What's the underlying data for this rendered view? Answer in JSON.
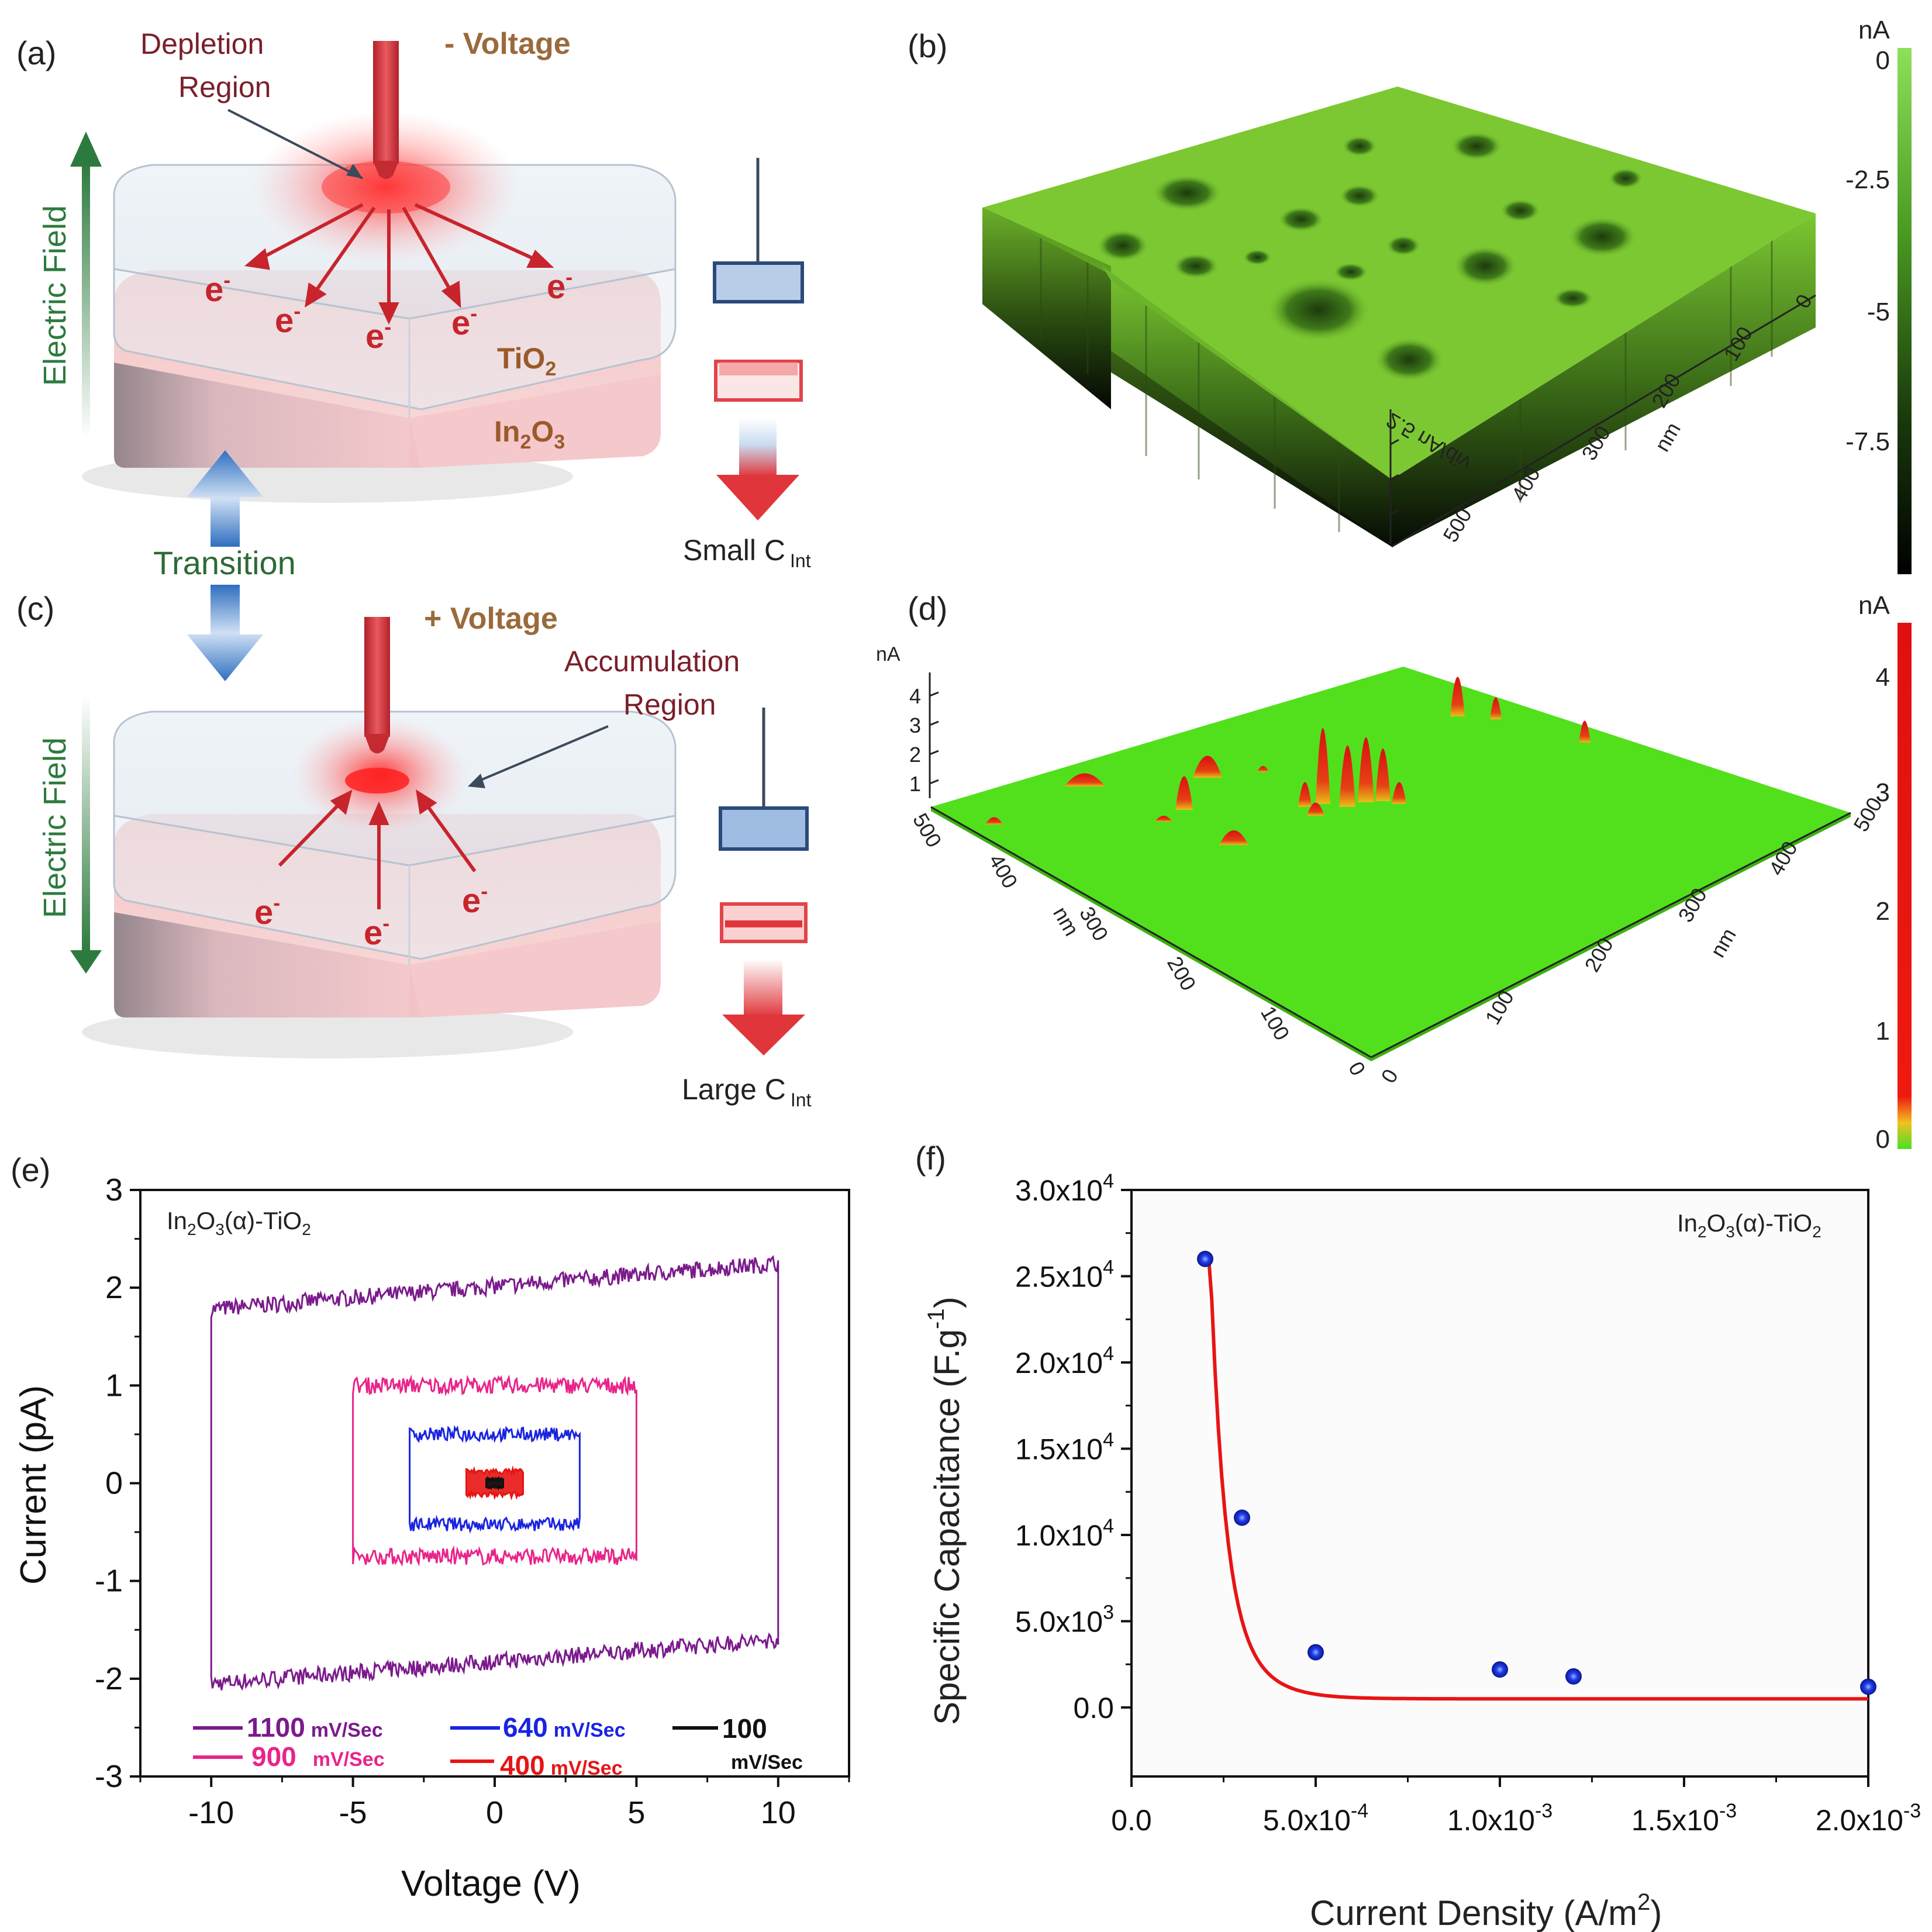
{
  "panels": {
    "a": {
      "tag": "(a)",
      "depletion_line1": "Depletion",
      "depletion_line2": "Region",
      "voltage": "- Voltage",
      "field": "Electric Field",
      "electron": "e",
      "electron_sup": "-",
      "tio2": "TiO",
      "tio2_sub": "2",
      "in2o3_a": "In",
      "in2o3_sub1": "2",
      "in2o3_b": "O",
      "in2o3_sub2": "3",
      "cap_label": "Small C",
      "cap_sub": "Int"
    },
    "transition": "Transition",
    "c": {
      "tag": "(c)",
      "voltage": "+ Voltage",
      "accum_line1": "Accumulation",
      "accum_line2": "Region",
      "field": "Electric Field",
      "electron": "e",
      "electron_sup": "-",
      "cap_label": "Large C",
      "cap_sub": "Int"
    },
    "b": {
      "tag": "(b)",
      "unit": "nA",
      "colorbar_ticks": [
        "0",
        "-2.5",
        "-5",
        "-7.5"
      ],
      "z_label": "2.5 nA/div",
      "axis_label": "nm",
      "axis_ticks": [
        "0",
        "100",
        "200",
        "300",
        "400",
        "500"
      ],
      "colors": {
        "top": "#7cc832",
        "bottom": "#0a0a0a"
      }
    },
    "d": {
      "tag": "(d)",
      "unit": "nA",
      "colorbar_ticks": [
        "4",
        "3",
        "2",
        "1",
        "0"
      ],
      "z_unit": "nA",
      "z_ticks": [
        "4",
        "3",
        "2",
        "1"
      ],
      "axis_label": "nm",
      "left_ticks": [
        "500",
        "400",
        "300",
        "200",
        "100",
        "0"
      ],
      "right_ticks": [
        "0",
        "100",
        "200",
        "300",
        "400",
        "500"
      ],
      "colors": {
        "floor": "#52e01c",
        "peak": "#e81010"
      }
    },
    "e": {
      "tag": "(e)",
      "inset_a": "In",
      "inset_sub1": "2",
      "inset_b": "O",
      "inset_sub2": "3",
      "inset_c": "(α)-TiO",
      "inset_sub3": "2",
      "legend": [
        {
          "value": "1100",
          "unit": "mV/Sec",
          "color": "#7b1a8c"
        },
        {
          "value": "640",
          "unit": "mV/Sec",
          "color": "#1a24e0"
        },
        {
          "value": "100",
          "unit": "mV/Sec",
          "color": "#111111"
        },
        {
          "value": "900",
          "unit": "mV/Sec",
          "color": "#e8248a"
        },
        {
          "value": "400",
          "unit": "mV/Sec",
          "color": "#e81414"
        }
      ]
    },
    "f": {
      "tag": "(f)",
      "inset_a": "In",
      "inset_sub1": "2",
      "inset_b": "O",
      "inset_sub2": "3",
      "inset_c": "(α)-TiO",
      "inset_sub3": "2",
      "ylabel_main": "Specific Capacitance (F.g",
      "ylabel_sup": "-1",
      "ylabel_end": ")",
      "xlabel_main": "Current Density (A/m",
      "xlabel_sup": "2",
      "xlabel_end": ")"
    }
  },
  "chart_data": [
    {
      "panel": "e",
      "type": "line",
      "xlabel": "Voltage (V)",
      "ylabel": "Current (pA)",
      "xlim": [
        -12.5,
        12.5
      ],
      "ylim": [
        -3,
        3
      ],
      "x_ticks": [
        -10,
        -5,
        0,
        5,
        10
      ],
      "y_ticks": [
        3,
        2,
        1,
        0,
        -1,
        -2,
        -3
      ],
      "x_tick_labels": [
        "-10",
        "-5",
        "0",
        "5",
        "10"
      ],
      "y_tick_labels": [
        "3",
        "2",
        "1",
        "0",
        "-1",
        "-2",
        "-3"
      ],
      "series": [
        {
          "name": "1100 mV/Sec",
          "color": "#7b1a8c",
          "v": [
            -10,
            10
          ],
          "i_top": [
            1.78,
            2.25
          ],
          "i_bot": [
            -2.05,
            -1.6
          ]
        },
        {
          "name": "900 mV/Sec",
          "color": "#e8248a",
          "v": [
            -5,
            5
          ],
          "i_top": [
            1.0,
            1.0
          ],
          "i_bot": [
            -0.75,
            -0.75
          ]
        },
        {
          "name": "640 mV/Sec",
          "color": "#1a24e0",
          "v": [
            -3,
            3
          ],
          "i_top": [
            0.5,
            0.5
          ],
          "i_bot": [
            -0.42,
            -0.42
          ]
        },
        {
          "name": "400 mV/Sec",
          "color": "#e81414",
          "v": [
            -1,
            1
          ],
          "i_top": [
            0.12,
            0.12
          ],
          "i_bot": [
            -0.12,
            -0.12
          ]
        },
        {
          "name": "100 mV/Sec",
          "color": "#111111",
          "v": [
            -0.3,
            0.3
          ],
          "i_top": [
            0.04,
            0.04
          ],
          "i_bot": [
            -0.04,
            -0.04
          ]
        }
      ]
    },
    {
      "panel": "f",
      "type": "scatter",
      "xlabel": "Current Density (A/m2)",
      "ylabel": "Specific Capacitance (F.g-1)",
      "xlim": [
        0,
        0.002
      ],
      "ylim": [
        -4000,
        30000
      ],
      "x_ticks": [
        0,
        0.0005,
        0.001,
        0.0015,
        0.002
      ],
      "y_ticks": [
        0,
        5000,
        10000,
        15000,
        20000,
        25000,
        30000
      ],
      "x_tick_labels": [
        {
          "main": "0.0",
          "sup": ""
        },
        {
          "main": "5.0x10",
          "sup": "-4"
        },
        {
          "main": "1.0x10",
          "sup": "-3"
        },
        {
          "main": "1.5x10",
          "sup": "-3"
        },
        {
          "main": "2.0x10",
          "sup": "-3"
        }
      ],
      "y_tick_labels": [
        {
          "main": "0.0",
          "sup": ""
        },
        {
          "main": "5.0x10",
          "sup": "3"
        },
        {
          "main": "1.0x10",
          "sup": "4"
        },
        {
          "main": "1.5x10",
          "sup": "4"
        },
        {
          "main": "2.0x10",
          "sup": "4"
        },
        {
          "main": "2.5x10",
          "sup": "4"
        },
        {
          "main": "3.0x10",
          "sup": "4"
        }
      ],
      "points": {
        "x": [
          0.0002,
          0.0003,
          0.0005,
          0.001,
          0.0012,
          0.002
        ],
        "y": [
          26000,
          11000,
          3200,
          2200,
          1800,
          1200
        ],
        "color": "#1530e0"
      },
      "fit_color": "#e81414"
    }
  ]
}
